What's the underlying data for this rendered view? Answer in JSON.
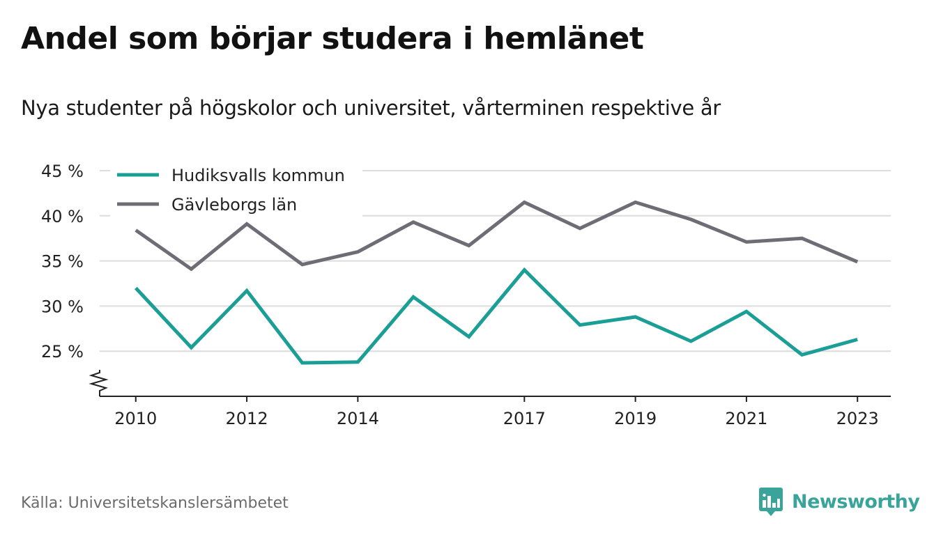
{
  "title": "Andel som börjar studera i hemlänet",
  "subtitle": "Nya studenter på högskolor och universitet, vårterminen respektive år",
  "source": "Källa: Universitetskanslersämbetet",
  "brand": {
    "name": "Newsworthy",
    "icon": "newsworthy-bar-chart-icon",
    "color": "#3aa39a"
  },
  "chart_data": {
    "type": "line",
    "x": [
      2010,
      2011,
      2012,
      2013,
      2014,
      2015,
      2016,
      2017,
      2018,
      2019,
      2020,
      2021,
      2022,
      2023
    ],
    "x_tick_labels": [
      "2010",
      "2012",
      "2014",
      "2017",
      "2019",
      "2021",
      "2023"
    ],
    "x_tick_values": [
      2010,
      2012,
      2014,
      2017,
      2019,
      2021,
      2023
    ],
    "y_tick_values": [
      25,
      30,
      35,
      40,
      45
    ],
    "y_tick_labels": [
      "25 %",
      "30 %",
      "35 %",
      "40 %",
      "45 %"
    ],
    "ylim": [
      20,
      45
    ],
    "y_axis_break": true,
    "grid": true,
    "legend_position": "top-left",
    "series": [
      {
        "name": "Hudiksvalls kommun",
        "color": "#1a9e96",
        "values": [
          32.0,
          25.4,
          31.7,
          23.7,
          23.8,
          31.0,
          26.6,
          34.0,
          27.9,
          28.8,
          26.1,
          29.4,
          24.6,
          26.3
        ]
      },
      {
        "name": "Gävleborgs län",
        "color": "#6e6d75",
        "values": [
          38.4,
          34.1,
          39.1,
          34.6,
          36.0,
          39.3,
          36.7,
          41.5,
          38.6,
          41.5,
          39.6,
          37.1,
          37.5,
          34.9
        ]
      }
    ]
  }
}
